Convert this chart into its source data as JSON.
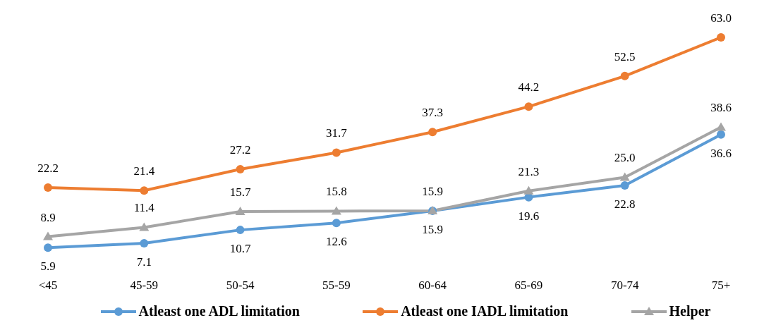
{
  "chart_data": {
    "type": "line",
    "categories": [
      "<45",
      "45-59",
      "50-54",
      "55-59",
      "60-64",
      "65-69",
      "70-74",
      "75+"
    ],
    "series": [
      {
        "name": "Atleast one ADL limitation",
        "color": "#5b9bd5",
        "marker": "circle",
        "values": [
          5.9,
          7.1,
          10.7,
          12.6,
          15.9,
          19.6,
          22.8,
          36.6
        ],
        "value_labels": [
          "5.9",
          "7.1",
          "10.7",
          "12.6",
          "15.9",
          "19.6",
          "22.8",
          "36.6"
        ]
      },
      {
        "name": "Atleast one IADL limitation",
        "color": "#ed7d31",
        "marker": "circle",
        "values": [
          22.2,
          21.4,
          27.2,
          31.7,
          37.3,
          44.2,
          52.5,
          63.0
        ],
        "value_labels": [
          "22.2",
          "21.4",
          "27.2",
          "31.7",
          "37.3",
          "44.2",
          "52.5",
          "63.0"
        ]
      },
      {
        "name": "Helper",
        "color": "#a5a5a5",
        "marker": "triangle",
        "values": [
          8.9,
          11.4,
          15.7,
          15.8,
          15.9,
          21.3,
          25.0,
          38.6
        ],
        "value_labels": [
          "8.9",
          "11.4",
          "15.7",
          "15.8",
          "15.9",
          "21.3",
          "25.0",
          "38.6"
        ]
      }
    ],
    "grid": false,
    "legend": "bottom"
  }
}
